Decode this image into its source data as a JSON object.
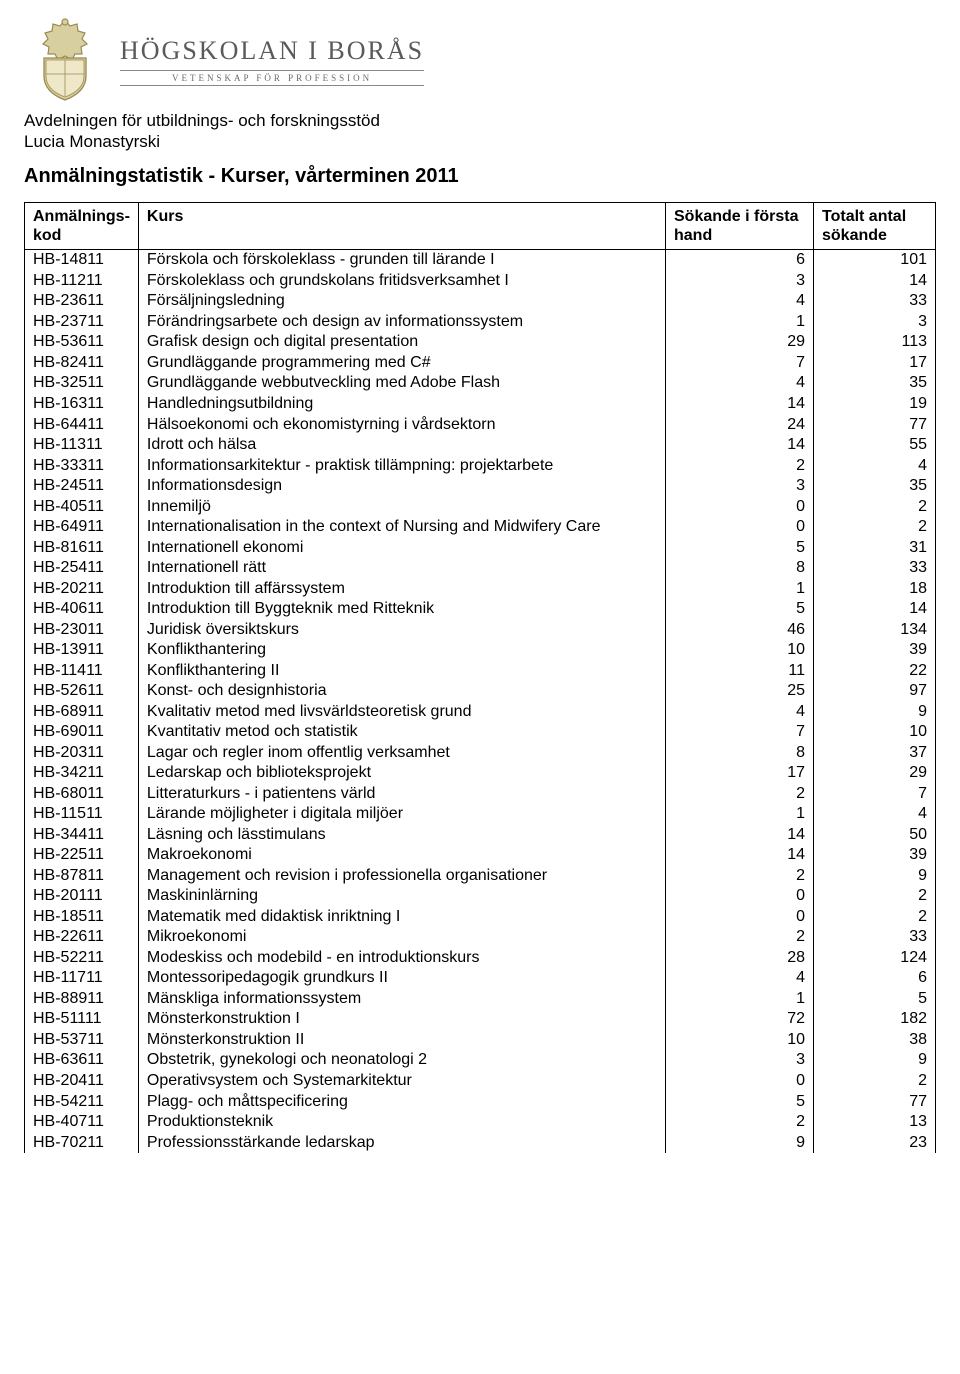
{
  "logo": {
    "main": "HÖGSKOLAN I BORÅS",
    "sub": "VETENSKAP FÖR PROFESSION"
  },
  "department_line1": "Avdelningen för utbildnings- och forskningsstöd",
  "department_line2": "Lucia Monastyrski",
  "page_title": "Anmälningstatistik - Kurser, vårterminen 2011",
  "columns": {
    "code": "Anmälnings-\nkod",
    "course": "Kurs",
    "hand": "Sökande i första\nhand",
    "total": "Totalt antal\nsökande"
  },
  "rows": [
    {
      "code": "HB-14811",
      "course": "Förskola och förskoleklass - grunden till lärande I",
      "hand": "6",
      "total": "101"
    },
    {
      "code": "HB-11211",
      "course": "Förskoleklass och grundskolans fritidsverksamhet I",
      "hand": "3",
      "total": "14"
    },
    {
      "code": "HB-23611",
      "course": "Försäljningsledning",
      "hand": "4",
      "total": "33"
    },
    {
      "code": "HB-23711",
      "course": "Förändringsarbete och design av informationssystem",
      "hand": "1",
      "total": "3"
    },
    {
      "code": "HB-53611",
      "course": "Grafisk design och digital presentation",
      "hand": "29",
      "total": "113"
    },
    {
      "code": "HB-82411",
      "course": "Grundläggande programmering med C#",
      "hand": "7",
      "total": "17"
    },
    {
      "code": "HB-32511",
      "course": "Grundläggande webbutveckling med Adobe Flash",
      "hand": "4",
      "total": "35"
    },
    {
      "code": "HB-16311",
      "course": "Handledningsutbildning",
      "hand": "14",
      "total": "19"
    },
    {
      "code": "HB-64411",
      "course": "Hälsoekonomi och ekonomistyrning i vårdsektorn",
      "hand": "24",
      "total": "77"
    },
    {
      "code": "HB-11311",
      "course": "Idrott och hälsa",
      "hand": "14",
      "total": "55"
    },
    {
      "code": "HB-33311",
      "course": "Informationsarkitektur - praktisk tillämpning: projektarbete",
      "hand": "2",
      "total": "4"
    },
    {
      "code": "HB-24511",
      "course": "Informationsdesign",
      "hand": "3",
      "total": "35"
    },
    {
      "code": "HB-40511",
      "course": "Innemiljö",
      "hand": "0",
      "total": "2"
    },
    {
      "code": "HB-64911",
      "course": "Internationalisation in the context of Nursing and Midwifery Care",
      "hand": "0",
      "total": "2"
    },
    {
      "code": "HB-81611",
      "course": "Internationell ekonomi",
      "hand": "5",
      "total": "31"
    },
    {
      "code": "HB-25411",
      "course": "Internationell rätt",
      "hand": "8",
      "total": "33"
    },
    {
      "code": "HB-20211",
      "course": "Introduktion till affärssystem",
      "hand": "1",
      "total": "18"
    },
    {
      "code": "HB-40611",
      "course": "Introduktion till Byggteknik med Ritteknik",
      "hand": "5",
      "total": "14"
    },
    {
      "code": "HB-23011",
      "course": "Juridisk översiktskurs",
      "hand": "46",
      "total": "134"
    },
    {
      "code": "HB-13911",
      "course": "Konflikthantering",
      "hand": "10",
      "total": "39"
    },
    {
      "code": "HB-11411",
      "course": "Konflikthantering II",
      "hand": "11",
      "total": "22"
    },
    {
      "code": "HB-52611",
      "course": "Konst- och designhistoria",
      "hand": "25",
      "total": "97"
    },
    {
      "code": "HB-68911",
      "course": "Kvalitativ metod med livsvärldsteoretisk grund",
      "hand": "4",
      "total": "9"
    },
    {
      "code": "HB-69011",
      "course": "Kvantitativ metod och statistik",
      "hand": "7",
      "total": "10"
    },
    {
      "code": "HB-20311",
      "course": "Lagar och regler inom offentlig verksamhet",
      "hand": "8",
      "total": "37"
    },
    {
      "code": "HB-34211",
      "course": "Ledarskap och biblioteksprojekt",
      "hand": "17",
      "total": "29"
    },
    {
      "code": "HB-68011",
      "course": "Litteraturkurs - i patientens värld",
      "hand": "2",
      "total": "7"
    },
    {
      "code": "HB-11511",
      "course": "Lärande möjligheter i digitala miljöer",
      "hand": "1",
      "total": "4"
    },
    {
      "code": "HB-34411",
      "course": "Läsning och lässtimulans",
      "hand": "14",
      "total": "50"
    },
    {
      "code": "HB-22511",
      "course": "Makroekonomi",
      "hand": "14",
      "total": "39"
    },
    {
      "code": "HB-87811",
      "course": "Management och revision i professionella organisationer",
      "hand": "2",
      "total": "9"
    },
    {
      "code": "HB-20111",
      "course": "Maskininlärning",
      "hand": "0",
      "total": "2"
    },
    {
      "code": "HB-18511",
      "course": "Matematik med didaktisk inriktning I",
      "hand": "0",
      "total": "2"
    },
    {
      "code": "HB-22611",
      "course": "Mikroekonomi",
      "hand": "2",
      "total": "33"
    },
    {
      "code": "HB-52211",
      "course": "Modeskiss och modebild - en introduktionskurs",
      "hand": "28",
      "total": "124"
    },
    {
      "code": "HB-11711",
      "course": "Montessoripedagogik grundkurs II",
      "hand": "4",
      "total": "6"
    },
    {
      "code": "HB-88911",
      "course": "Mänskliga informationssystem",
      "hand": "1",
      "total": "5"
    },
    {
      "code": "HB-51111",
      "course": "Mönsterkonstruktion I",
      "hand": "72",
      "total": "182"
    },
    {
      "code": "HB-53711",
      "course": "Mönsterkonstruktion II",
      "hand": "10",
      "total": "38"
    },
    {
      "code": "HB-63611",
      "course": "Obstetrik, gynekologi och neonatologi 2",
      "hand": "3",
      "total": "9"
    },
    {
      "code": "HB-20411",
      "course": "Operativsystem och Systemarkitektur",
      "hand": "0",
      "total": "2"
    },
    {
      "code": "HB-54211",
      "course": "Plagg- och måttspecificering",
      "hand": "5",
      "total": "77"
    },
    {
      "code": "HB-40711",
      "course": "Produktionsteknik",
      "hand": "2",
      "total": "13"
    },
    {
      "code": "HB-70211",
      "course": "Professionsstärkande ledarskap",
      "hand": "9",
      "total": "23"
    }
  ]
}
